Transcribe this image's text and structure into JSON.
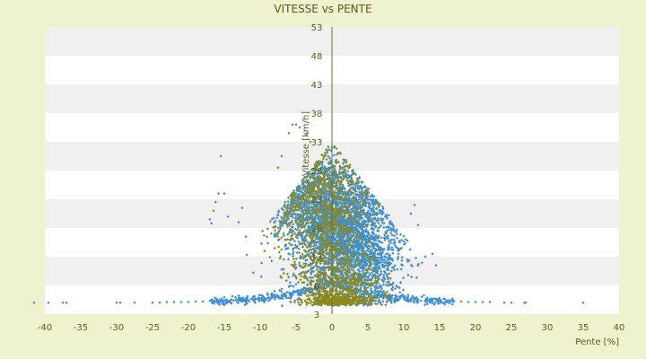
{
  "chart_data": {
    "type": "scatter",
    "title": "VITESSE vs PENTE",
    "xlabel": "Pente [%]",
    "ylabel": "Vitesse [km/h]",
    "xlim": [
      -40,
      40
    ],
    "ylim": [
      3,
      53
    ],
    "x_ticks": [
      -40,
      -35,
      -30,
      -25,
      -20,
      -15,
      -10,
      -5,
      0,
      5,
      10,
      15,
      20,
      25,
      30,
      35,
      40
    ],
    "y_ticks": [
      3,
      8,
      13,
      18,
      23,
      28,
      33,
      38,
      43,
      48,
      53
    ],
    "grid": "horizontal alternating bands",
    "legend": "none",
    "colors": {
      "background": "#eef2cf",
      "band_light": "#ffffff",
      "band_dark": "#f0f0f0",
      "axis": "#6b6f2a",
      "text": "#5a5f1c",
      "series_blue": "#3d8fd6",
      "series_olive": "#8c8a1e"
    },
    "series": [
      {
        "color": "#3d8fd6",
        "marker": "diamond",
        "clusters": [
          {
            "center": [
              1,
              18
            ],
            "spread": [
              3.2,
              5.5
            ],
            "count": 2200
          },
          {
            "center": [
              -2,
              22
            ],
            "spread": [
              2.5,
              4.5
            ],
            "count": 700
          },
          {
            "center": [
              5,
              12
            ],
            "spread": [
              2.5,
              3.5
            ],
            "count": 600
          }
        ],
        "low_band_points": [
          [
            -41.5,
            5.0
          ],
          [
            -39.5,
            5.0
          ],
          [
            -37.5,
            5.0
          ],
          [
            -37,
            5.0
          ],
          [
            -30,
            5.0
          ],
          [
            -29.5,
            5.0
          ],
          [
            -27.5,
            5.0
          ],
          [
            -25,
            5.0
          ],
          [
            -24,
            5.0
          ],
          [
            -23,
            5.1
          ],
          [
            -22,
            5.1
          ],
          [
            -21,
            5.1
          ],
          [
            -20,
            5.1
          ],
          [
            -19,
            5.2
          ],
          [
            -18,
            5.2
          ],
          [
            -17,
            5.3
          ],
          [
            -16,
            5.3
          ],
          [
            -15,
            5.4
          ],
          [
            -14,
            5.5
          ],
          [
            -13,
            5.6
          ],
          [
            -12,
            5.8
          ],
          [
            -11,
            6.0
          ],
          [
            -10,
            6.3
          ],
          [
            -9,
            6.6
          ],
          [
            -8,
            7.0
          ],
          [
            -7,
            7.4
          ],
          [
            -6,
            7.8
          ],
          [
            -5,
            8.2
          ],
          [
            -4,
            8.5
          ],
          [
            -3,
            8.6
          ],
          [
            3,
            8.4
          ],
          [
            4,
            8.0
          ],
          [
            5,
            7.6
          ],
          [
            6,
            7.2
          ],
          [
            7,
            6.8
          ],
          [
            8,
            6.4
          ],
          [
            9,
            6.1
          ],
          [
            10,
            5.9
          ],
          [
            11,
            5.7
          ],
          [
            12,
            5.5
          ],
          [
            13,
            5.4
          ],
          [
            14,
            5.3
          ],
          [
            15,
            5.3
          ],
          [
            16,
            5.2
          ],
          [
            17,
            5.2
          ],
          [
            18,
            5.2
          ],
          [
            19,
            5.1
          ],
          [
            20,
            5.1
          ],
          [
            21,
            5.1
          ],
          [
            22,
            5.1
          ],
          [
            24,
            5.0
          ],
          [
            25,
            5.0
          ],
          [
            26.8,
            5.0
          ],
          [
            27,
            5.0
          ],
          [
            35,
            5.0
          ]
        ],
        "outliers": [
          [
            -15.5,
            30.5
          ],
          [
            -15.8,
            24.0
          ],
          [
            -16.2,
            22.5
          ],
          [
            -17.0,
            19.5
          ],
          [
            -16.8,
            18.8
          ],
          [
            -14.5,
            20.0
          ],
          [
            -13.0,
            19.0
          ],
          [
            -12.5,
            21.5
          ],
          [
            -12.0,
            16.5
          ],
          [
            11.5,
            22.0
          ],
          [
            12.0,
            18.5
          ],
          [
            11.0,
            20.5
          ],
          [
            14.5,
            11.5
          ],
          [
            13.0,
            13.0
          ],
          [
            0.0,
            32.0
          ],
          [
            -5.0,
            36.0
          ],
          [
            -4.5,
            35.5
          ],
          [
            -3.5,
            34.5
          ]
        ]
      },
      {
        "color": "#8c8a1e",
        "marker": "diamond",
        "clusters": [
          {
            "center": [
              -1,
              20
            ],
            "spread": [
              3.0,
              6.5
            ],
            "count": 1000
          },
          {
            "center": [
              2,
              8
            ],
            "spread": [
              2.5,
              3.0
            ],
            "count": 450
          },
          {
            "center": [
              0,
              5.5
            ],
            "spread": [
              2.0,
              0.8
            ],
            "count": 300
          }
        ],
        "outliers": [
          [
            -5.5,
            36.0
          ],
          [
            -6.0,
            34.5
          ],
          [
            -3.0,
            33.0
          ],
          [
            -15.0,
            24.0
          ],
          [
            -16.5,
            21.0
          ],
          [
            14.0,
            13.5
          ],
          [
            10.5,
            12.5
          ],
          [
            -7.0,
            30.5
          ],
          [
            -7.5,
            28.5
          ]
        ]
      }
    ]
  }
}
